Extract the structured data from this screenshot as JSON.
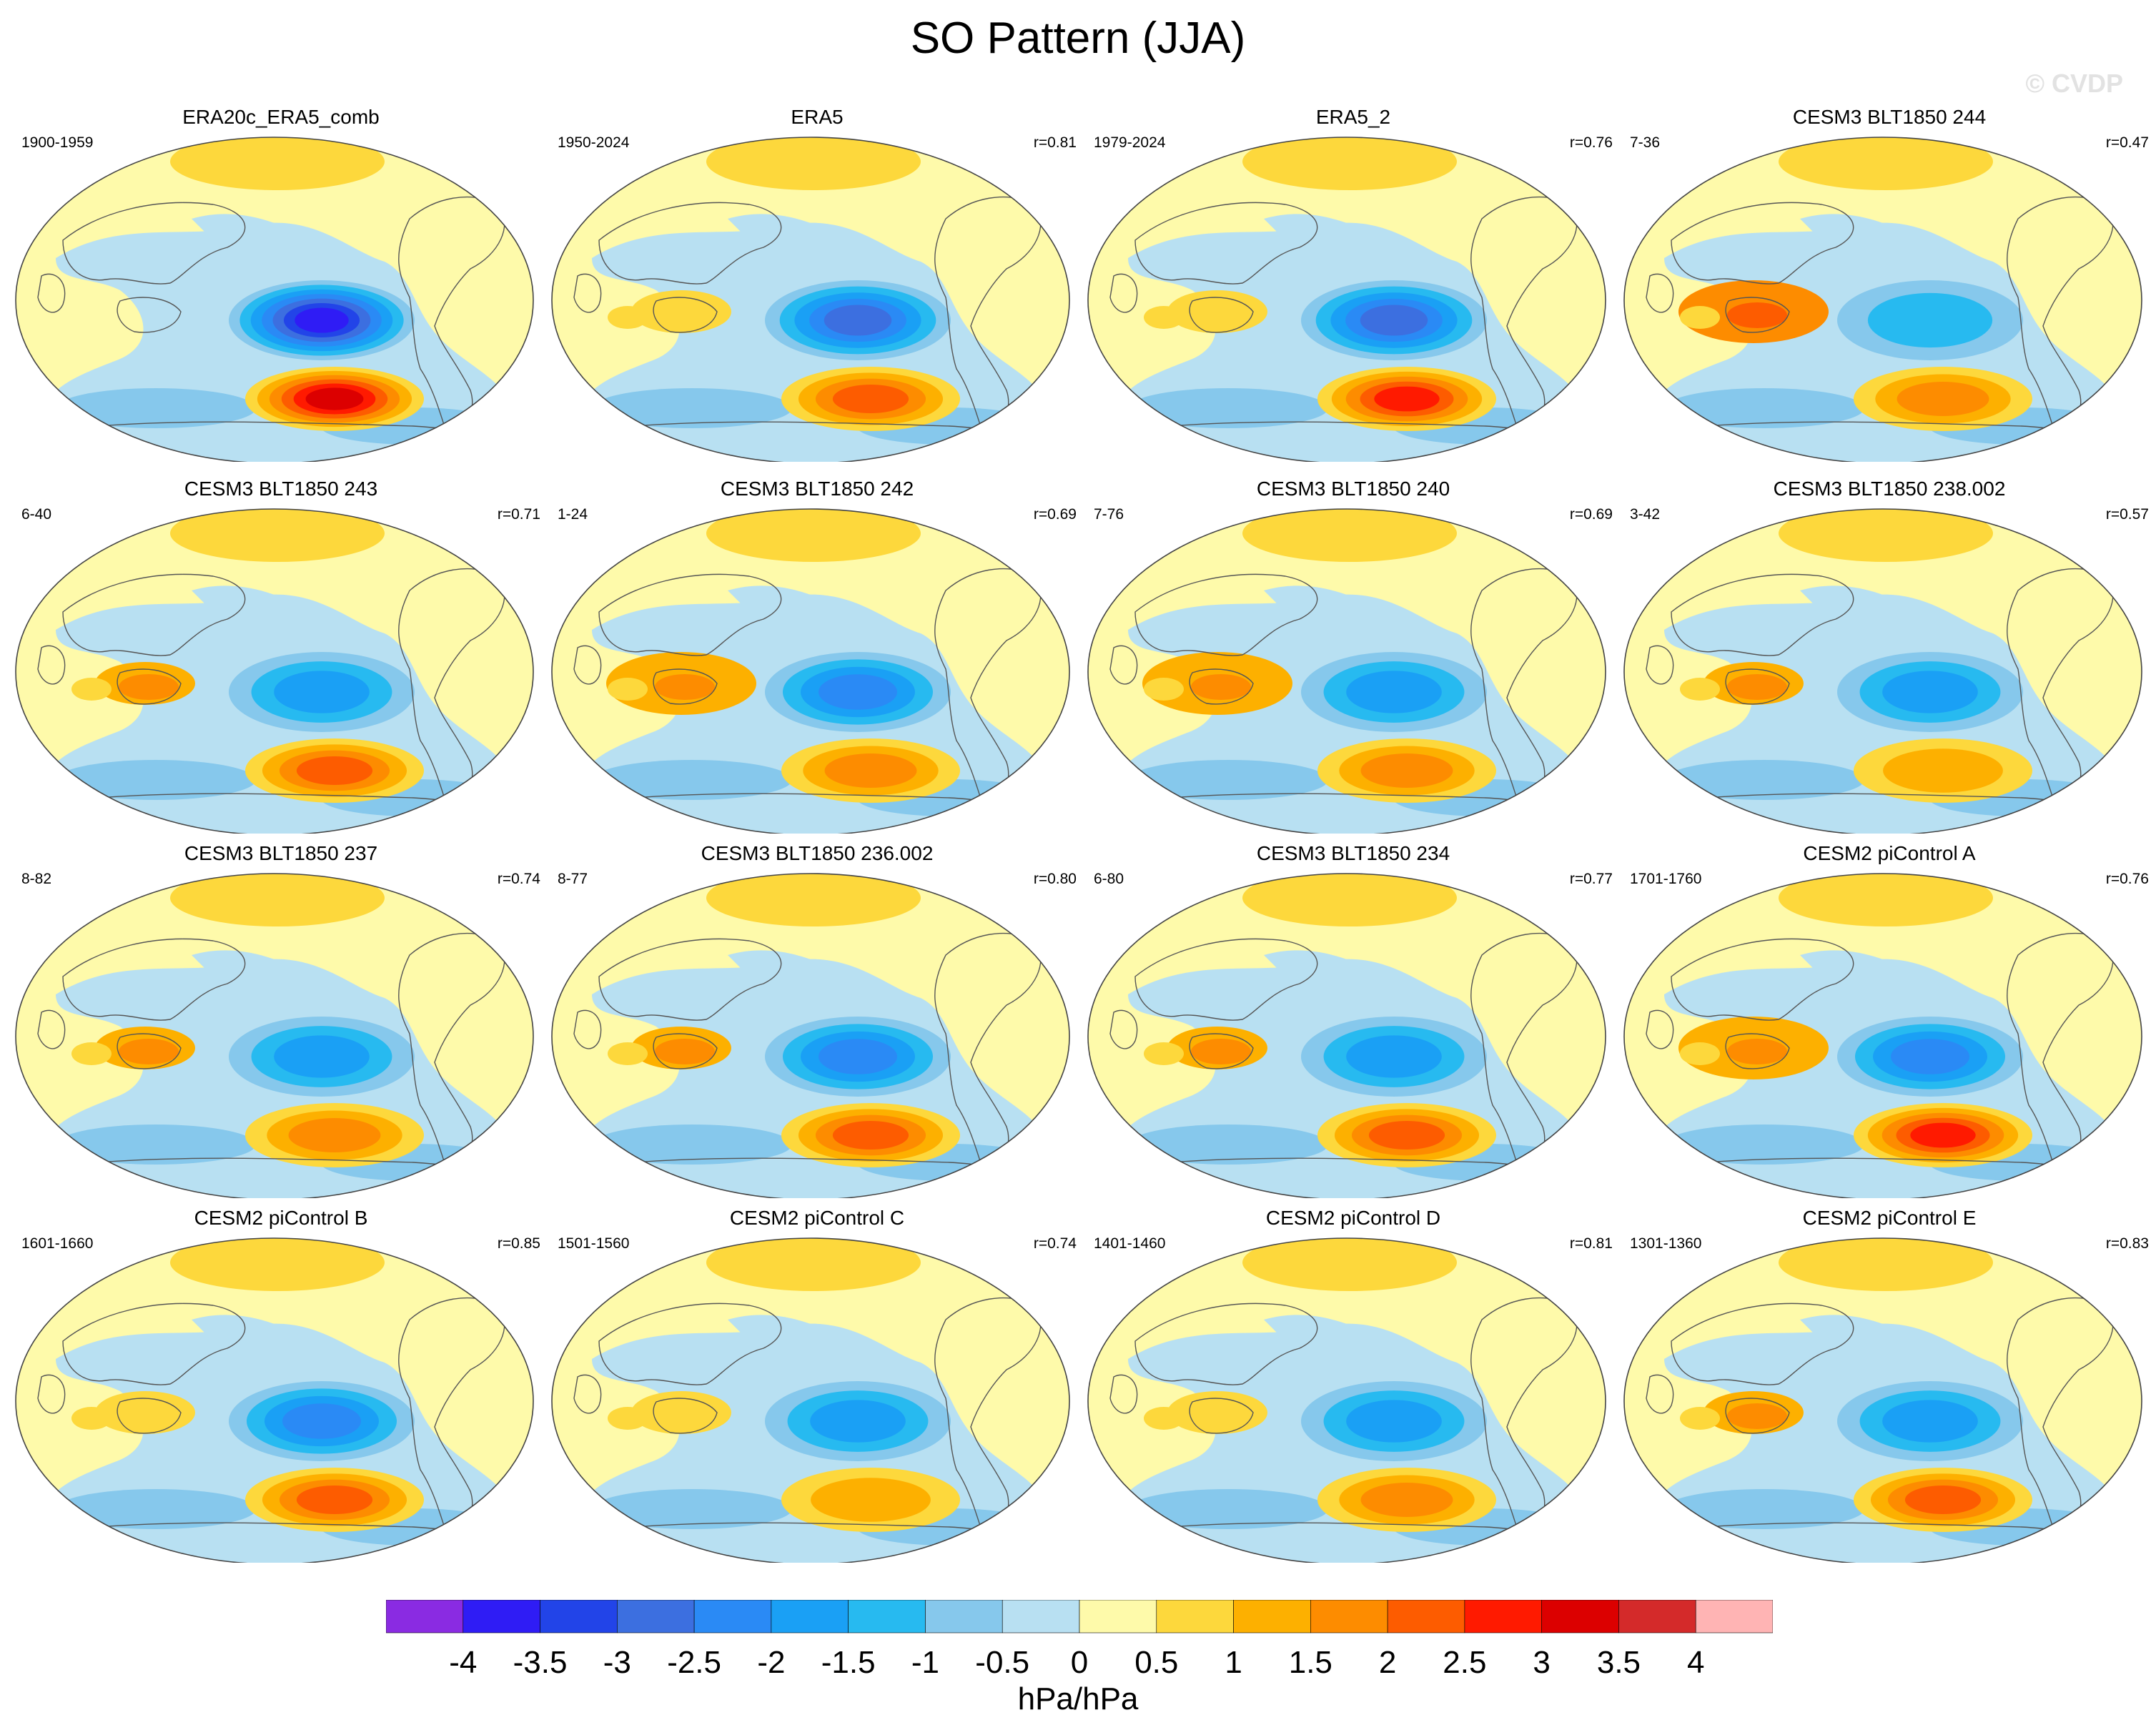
{
  "title": "SO Pattern (JJA)",
  "watermark": "© CVDP",
  "panels": [
    {
      "name": "ERA20c_ERA5_comb",
      "period": "1900-1959",
      "corr": "",
      "neg": -3.5,
      "pos": 3.0,
      "w": "none",
      "wl": 0,
      "hi": "strong"
    },
    {
      "name": "ERA5",
      "period": "1950-2024",
      "corr": "r=0.81",
      "neg": -2.5,
      "pos": 2.0,
      "w": "weak",
      "wl": 0.5,
      "hi": "mid"
    },
    {
      "name": "ERA5_2",
      "period": "1979-2024",
      "corr": "r=0.76",
      "neg": -2.5,
      "pos": 2.5,
      "w": "weak",
      "wl": 0.5,
      "hi": "mid"
    },
    {
      "name": "CESM3 BLT1850 244",
      "period": "7-36",
      "corr": "r=0.47",
      "neg": -1.0,
      "pos": 1.5,
      "w": "strong",
      "wl": 1.5,
      "hi": "mid"
    },
    {
      "name": "CESM3 BLT1850 243",
      "period": "6-40",
      "corr": "r=0.71",
      "neg": -1.5,
      "pos": 2.0,
      "w": "weak",
      "wl": 1.0,
      "hi": "weak"
    },
    {
      "name": "CESM3 BLT1850 242",
      "period": "1-24",
      "corr": "r=0.69",
      "neg": -2.0,
      "pos": 1.5,
      "w": "strong",
      "wl": 1.0,
      "hi": "weak"
    },
    {
      "name": "CESM3 BLT1850 240",
      "period": "7-76",
      "corr": "r=0.69",
      "neg": -1.5,
      "pos": 1.5,
      "w": "strong",
      "wl": 1.0,
      "hi": "weak"
    },
    {
      "name": "CESM3 BLT1850 238.002",
      "period": "3-42",
      "corr": "r=0.57",
      "neg": -1.5,
      "pos": 1.0,
      "w": "weak",
      "wl": 1.0,
      "hi": "weak"
    },
    {
      "name": "CESM3 BLT1850 237",
      "period": "8-82",
      "corr": "r=0.74",
      "neg": -1.5,
      "pos": 1.5,
      "w": "weak",
      "wl": 1.0,
      "hi": "weak"
    },
    {
      "name": "CESM3 BLT1850 236.002",
      "period": "8-77",
      "corr": "r=0.80",
      "neg": -2.0,
      "pos": 2.0,
      "w": "weak",
      "wl": 1.0,
      "hi": "weak"
    },
    {
      "name": "CESM3 BLT1850 234",
      "period": "6-80",
      "corr": "r=0.77",
      "neg": -1.5,
      "pos": 2.0,
      "w": "weak",
      "wl": 1.0,
      "hi": "weak"
    },
    {
      "name": "CESM2 piControl A",
      "period": "1701-1760",
      "corr": "r=0.76",
      "neg": -2.0,
      "pos": 2.5,
      "w": "strong",
      "wl": 1.0,
      "hi": "mid"
    },
    {
      "name": "CESM2 piControl B",
      "period": "1601-1660",
      "corr": "r=0.85",
      "neg": -2.0,
      "pos": 2.0,
      "w": "weak",
      "wl": 0.5,
      "hi": "weak"
    },
    {
      "name": "CESM2 piControl C",
      "period": "1501-1560",
      "corr": "r=0.74",
      "neg": -1.5,
      "pos": 1.0,
      "w": "weak",
      "wl": 0.5,
      "hi": "weak"
    },
    {
      "name": "CESM2 piControl D",
      "period": "1401-1460",
      "corr": "r=0.81",
      "neg": -1.5,
      "pos": 1.5,
      "w": "weak",
      "wl": 0.5,
      "hi": "weak"
    },
    {
      "name": "CESM2 piControl E",
      "period": "1301-1360",
      "corr": "r=0.83",
      "neg": -1.5,
      "pos": 2.0,
      "w": "weak",
      "wl": 1.0,
      "hi": "weak"
    }
  ],
  "colorbar": {
    "colors": [
      "#8a2be2",
      "#2f1cf5",
      "#2244e8",
      "#3c6fe0",
      "#2a8af5",
      "#1aa0f5",
      "#27baf0",
      "#86c8ec",
      "#b8e0f2",
      "#fefaaa",
      "#fdd83c",
      "#fdb000",
      "#fd8c00",
      "#fd5c00",
      "#ff1a00",
      "#dc0000",
      "#d42a2a",
      "#ffb4b4"
    ],
    "ticks": [
      "-4",
      "-3.5",
      "-3",
      "-2.5",
      "-2",
      "-1.5",
      "-1",
      "-0.5",
      "0",
      "0.5",
      "1",
      "1.5",
      "2",
      "2.5",
      "3",
      "3.5",
      "4"
    ],
    "label": "hPa/hPa"
  }
}
